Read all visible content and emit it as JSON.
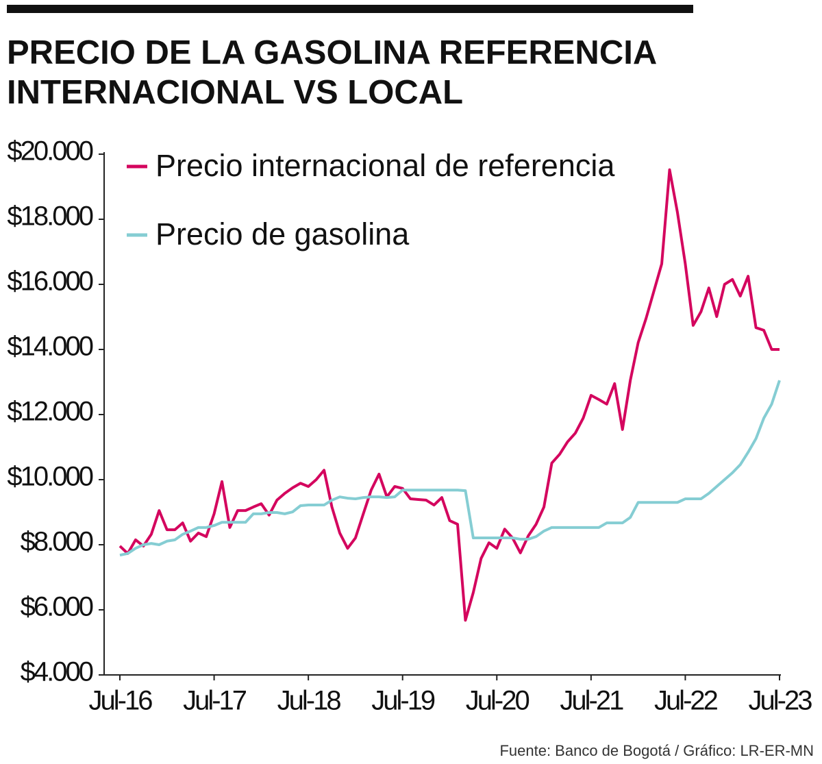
{
  "chart_data": {
    "type": "line",
    "title_lines": [
      "PRECIO DE LA GASOLINA REFERENCIA",
      "INTERNACIONAL VS LOCAL"
    ],
    "source": "Fuente: Banco de Bogotá / Gráfico: LR-ER-MN",
    "categories": [
      "Jul-16",
      null,
      null,
      null,
      null,
      null,
      null,
      null,
      null,
      null,
      null,
      null,
      "Jul-17",
      null,
      null,
      null,
      null,
      null,
      null,
      null,
      null,
      null,
      null,
      null,
      "Jul-18",
      null,
      null,
      null,
      null,
      null,
      null,
      null,
      null,
      null,
      null,
      null,
      "Jul-19",
      null,
      null,
      null,
      null,
      null,
      null,
      null,
      null,
      null,
      null,
      null,
      "Jul-20",
      null,
      null,
      null,
      null,
      null,
      null,
      null,
      null,
      null,
      null,
      null,
      "Jul-21",
      null,
      null,
      null,
      null,
      null,
      null,
      null,
      null,
      null,
      null,
      null,
      "Jul-22",
      null,
      null,
      null,
      null,
      null,
      null,
      null,
      null,
      null,
      null,
      null,
      "Jul-23"
    ],
    "series": [
      {
        "name": "Precio internacional de referencia",
        "color": "#d4055e",
        "values": [
          7960,
          7730,
          8150,
          7960,
          8320,
          9050,
          8460,
          8460,
          8670,
          8110,
          8360,
          8250,
          8950,
          9940,
          8530,
          9050,
          9050,
          9160,
          9260,
          8910,
          9370,
          9580,
          9750,
          9890,
          9790,
          10000,
          10290,
          9160,
          8360,
          7890,
          8210,
          8950,
          9680,
          10170,
          9470,
          9790,
          9730,
          9410,
          9390,
          9370,
          9220,
          9450,
          8740,
          8630,
          5680,
          6530,
          7580,
          8060,
          7890,
          8480,
          8210,
          7750,
          8270,
          8630,
          9160,
          10510,
          10780,
          11160,
          11430,
          11890,
          12590,
          12460,
          12320,
          12950,
          11540,
          13050,
          14210,
          14950,
          15790,
          16630,
          19520,
          18210,
          16630,
          14740,
          15160,
          15890,
          15010,
          16000,
          16150,
          15640,
          16250,
          14670,
          14590,
          14000,
          14000
        ]
      },
      {
        "name": "Precio de gasolina",
        "color": "#85cdd3",
        "values": [
          7680,
          7730,
          7890,
          8000,
          8040,
          8000,
          8110,
          8150,
          8320,
          8420,
          8530,
          8530,
          8590,
          8690,
          8690,
          8690,
          8690,
          8950,
          8950,
          8990,
          8990,
          8950,
          9010,
          9200,
          9220,
          9220,
          9220,
          9370,
          9470,
          9430,
          9410,
          9450,
          9470,
          9470,
          9450,
          9470,
          9680,
          9680,
          9680,
          9680,
          9680,
          9680,
          9680,
          9680,
          9660,
          8210,
          8210,
          8210,
          8210,
          8210,
          8210,
          8170,
          8170,
          8250,
          8420,
          8530,
          8530,
          8530,
          8530,
          8530,
          8530,
          8530,
          8670,
          8670,
          8670,
          8840,
          9300,
          9300,
          9300,
          9300,
          9300,
          9300,
          9410,
          9410,
          9410,
          9580,
          9790,
          10000,
          10210,
          10460,
          10840,
          11260,
          11890,
          12320,
          13050
        ]
      }
    ],
    "ylim": [
      4000,
      20000
    ],
    "yticks": [
      {
        "value": 4000,
        "label": "$4.000"
      },
      {
        "value": 6000,
        "label": "$6.000"
      },
      {
        "value": 8000,
        "label": "$8.000"
      },
      {
        "value": 10000,
        "label": "$10.000"
      },
      {
        "value": 12000,
        "label": "$12.000"
      },
      {
        "value": 14000,
        "label": "$14.000"
      },
      {
        "value": 16000,
        "label": "$16.000"
      },
      {
        "value": 18000,
        "label": "$18.000"
      },
      {
        "value": 20000,
        "label": "$20.000"
      }
    ],
    "grid": false,
    "legend": "top-left"
  }
}
